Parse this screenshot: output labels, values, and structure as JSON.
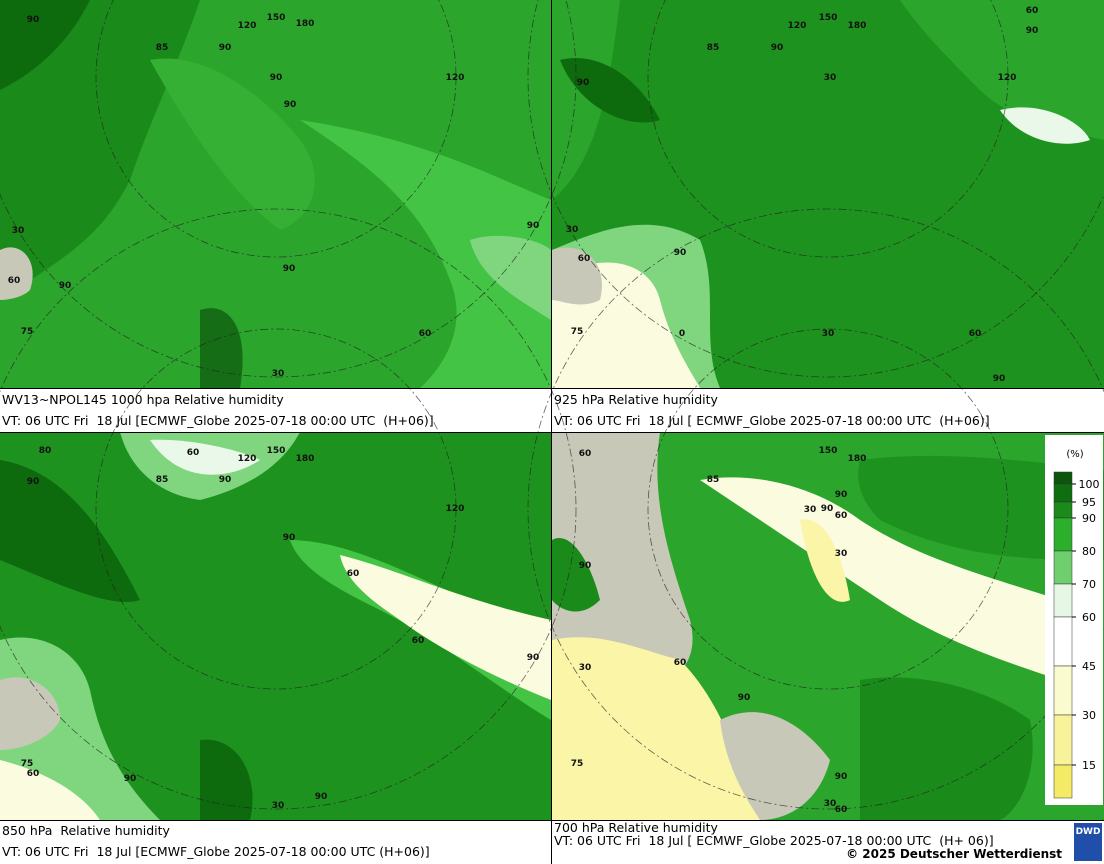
{
  "panels": [
    {
      "title": "WV13~NPOL145 1000 hpa Relative humidity",
      "valid": "VT: 06 UTC Fri  18 Jul [ECMWF_Globe 2025-07-18 00:00 UTC  (H+06)]",
      "labels": [
        "90",
        "150",
        "180",
        "120",
        "85",
        "90",
        "90",
        "120",
        "90",
        "90",
        "90",
        "60",
        "30",
        "75",
        "60",
        "30",
        "90"
      ]
    },
    {
      "title": "925 hPa Relative humidity",
      "valid": "VT: 06 UTC Fri  18 Jul [ ECMWF_Globe 2025-07-18 00:00 UTC  (H+06)]",
      "labels": [
        "60",
        "90",
        "150",
        "180",
        "120",
        "85",
        "90",
        "120",
        "30",
        "90",
        "90",
        "60",
        "30",
        "75",
        "0",
        "30",
        "60",
        "90"
      ]
    },
    {
      "title": "850 hPa  Relative humidity",
      "valid": "VT: 06 UTC Fri  18 Jul [ECMWF_Globe 2025-07-18 00:00 UTC (H+06)]",
      "labels": [
        "80",
        "60",
        "120",
        "150",
        "180",
        "85",
        "90",
        "90",
        "120",
        "90",
        "60",
        "60",
        "90",
        "75",
        "60",
        "90",
        "90",
        "30"
      ]
    },
    {
      "title": "700 hPa Relative humidity",
      "valid": "VT: 06 UTC Fri  18 Jul [ ECMWF_Globe 2025-07-18 00:00 UTC  (H+ 06)]",
      "labels": [
        "60",
        "150",
        "180",
        "85",
        "90",
        "30",
        "90",
        "60",
        "30",
        "90",
        "30",
        "60",
        "90",
        "75",
        "90",
        "30",
        "60"
      ]
    }
  ],
  "legend": {
    "unit": "(%)",
    "ticks": [
      100,
      95,
      90,
      80,
      70,
      60,
      45,
      30,
      15
    ]
  },
  "copyright": "© 2025 Deutscher Wetterdienst",
  "logo": "DWD"
}
